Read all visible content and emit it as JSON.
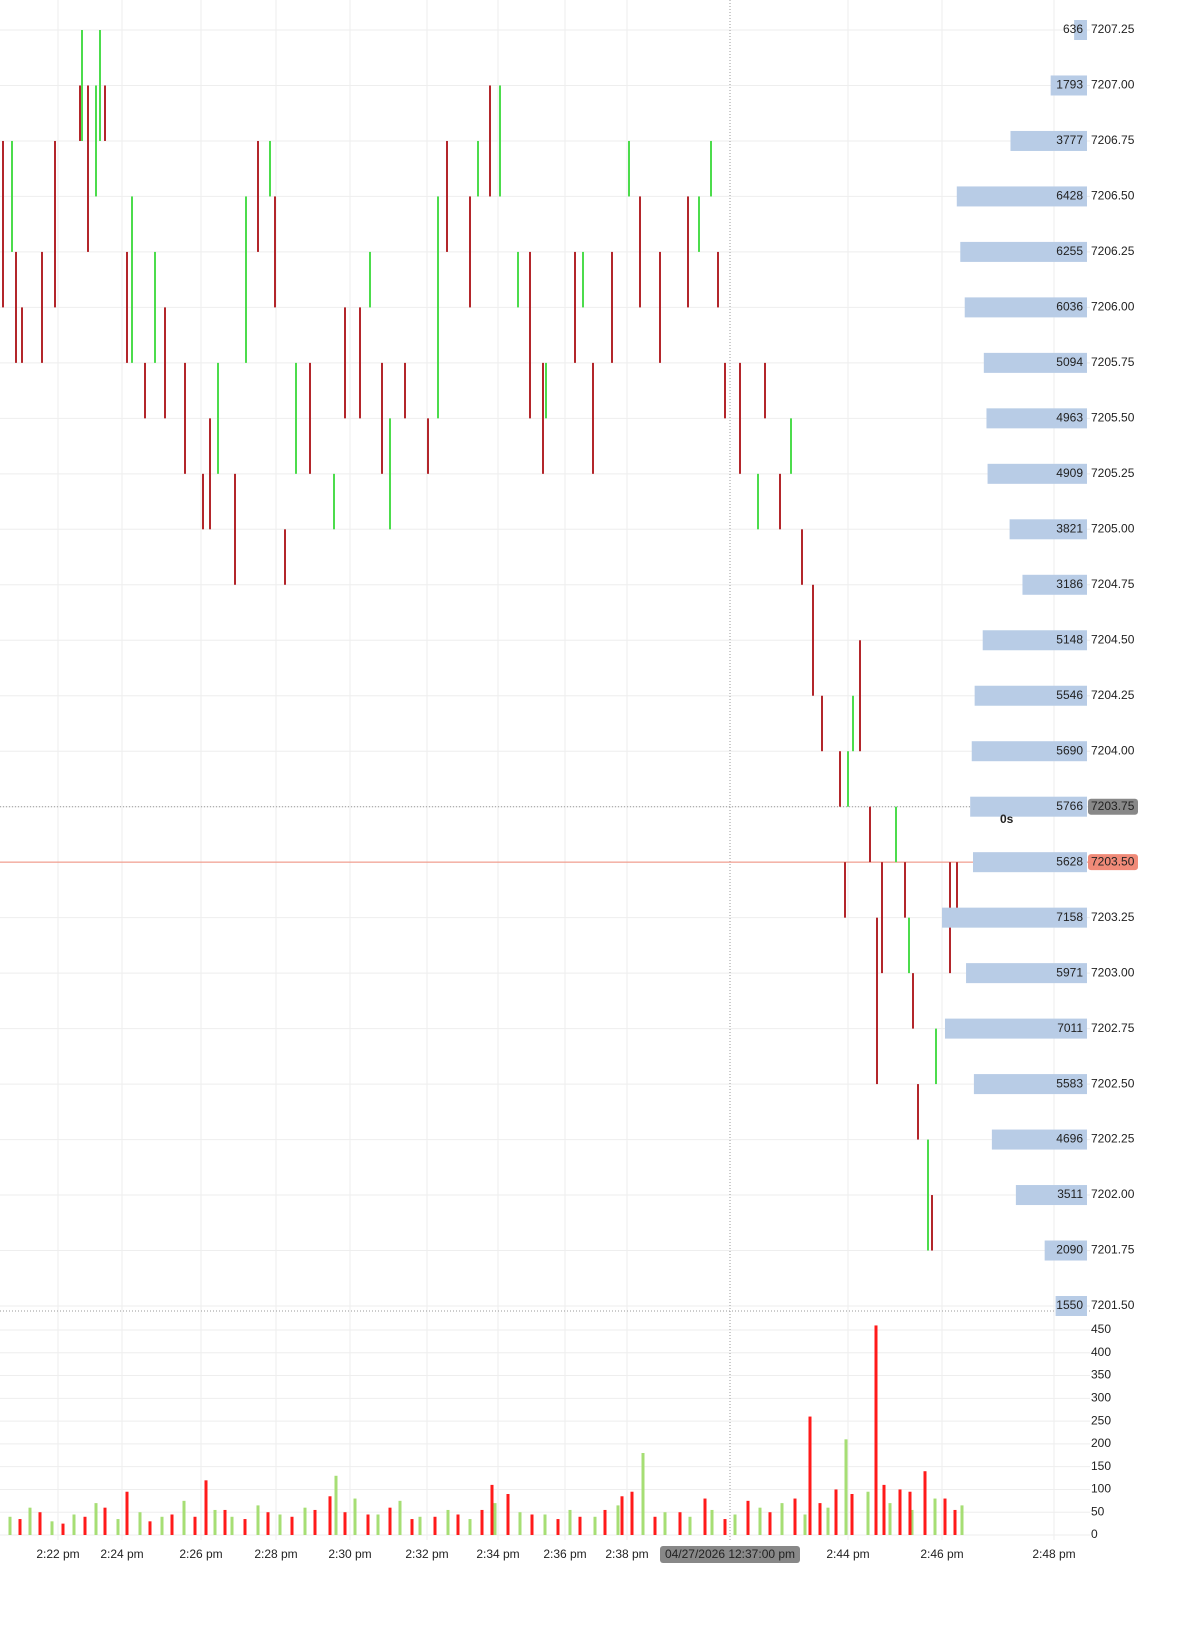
{
  "chart_data": [
    {
      "type": "range",
      "xlim": [
        0,
        1090
      ],
      "ylim": [
        7201.5,
        7207.25
      ],
      "yticks": [
        {
          "value": 7207.25,
          "label": "7207.25"
        },
        {
          "value": 7207.0,
          "label": "7207.00"
        },
        {
          "value": 7206.75,
          "label": "7206.75"
        },
        {
          "value": 7206.5,
          "label": "7206.50"
        },
        {
          "value": 7206.25,
          "label": "7206.25"
        },
        {
          "value": 7206.0,
          "label": "7206.00"
        },
        {
          "value": 7205.75,
          "label": "7205.75"
        },
        {
          "value": 7205.5,
          "label": "7205.50"
        },
        {
          "value": 7205.25,
          "label": "7205.25"
        },
        {
          "value": 7205.0,
          "label": "7205.00"
        },
        {
          "value": 7204.75,
          "label": "7204.75"
        },
        {
          "value": 7204.5,
          "label": "7204.50"
        },
        {
          "value": 7204.25,
          "label": "7204.25"
        },
        {
          "value": 7204.0,
          "label": "7204.00"
        },
        {
          "value": 7203.75,
          "label": "7203.75"
        },
        {
          "value": 7203.5,
          "label": "7203.50"
        },
        {
          "value": 7203.25,
          "label": "7203.25"
        },
        {
          "value": 7203.0,
          "label": "7203.00"
        },
        {
          "value": 7202.75,
          "label": "7202.75"
        },
        {
          "value": 7202.5,
          "label": "7202.50"
        },
        {
          "value": 7202.25,
          "label": "7202.25"
        },
        {
          "value": 7202.0,
          "label": "7202.00"
        },
        {
          "value": 7201.75,
          "label": "7201.75"
        },
        {
          "value": 7201.5,
          "label": "7201.50"
        }
      ],
      "grid": true,
      "profile": {
        "color": "#b8cce6",
        "values": [
          636,
          1793,
          3777,
          6428,
          6255,
          6036,
          5094,
          4963,
          4909,
          3821,
          3186,
          5148,
          5546,
          5690,
          5766,
          5628,
          7158,
          5971,
          7011,
          5583,
          4696,
          3511,
          2090,
          1550
        ]
      },
      "series": [
        {
          "color": "#4cdc4c",
          "x": [
            12,
            82,
            96,
            100,
            132,
            155,
            218,
            246,
            270,
            296,
            334,
            370,
            390,
            438,
            478,
            500,
            518,
            546,
            583,
            629,
            699,
            711,
            758,
            791,
            848,
            853,
            896,
            909,
            928,
            936
          ],
          "low": [
            7206.25,
            7206.75,
            7206.5,
            7206.75,
            7205.75,
            7205.75,
            7205.25,
            7205.75,
            7206.5,
            7205.25,
            7205.0,
            7206.0,
            7205.0,
            7205.5,
            7206.5,
            7206.5,
            7206.0,
            7205.5,
            7206.0,
            7206.5,
            7206.25,
            7206.5,
            7205.0,
            7205.25,
            7203.75,
            7204.0,
            7203.5,
            7203.0,
            7201.75,
            7202.5
          ],
          "high": [
            7206.75,
            7207.25,
            7207.0,
            7207.25,
            7206.5,
            7206.25,
            7205.75,
            7206.5,
            7206.75,
            7205.75,
            7205.25,
            7206.25,
            7205.5,
            7206.5,
            7206.75,
            7207.0,
            7206.25,
            7205.75,
            7206.25,
            7206.75,
            7206.5,
            7206.75,
            7205.25,
            7205.5,
            7204.0,
            7204.25,
            7203.75,
            7203.25,
            7202.25,
            7202.75
          ]
        },
        {
          "color": "#b3262b",
          "x": [
            3,
            16,
            22,
            42,
            55,
            80,
            88,
            105,
            127,
            145,
            165,
            185,
            203,
            210,
            235,
            258,
            275,
            285,
            310,
            345,
            360,
            382,
            405,
            428,
            447,
            470,
            490,
            530,
            543,
            575,
            593,
            612,
            640,
            660,
            688,
            718,
            725,
            740,
            765,
            780,
            802,
            813,
            822,
            840,
            845,
            860,
            870,
            877,
            882,
            905,
            913,
            918,
            932,
            950,
            957
          ],
          "low": [
            7206.0,
            7205.75,
            7205.75,
            7205.75,
            7206.0,
            7206.75,
            7206.25,
            7206.75,
            7205.75,
            7205.5,
            7205.5,
            7205.25,
            7205.0,
            7205.0,
            7204.75,
            7206.25,
            7206.0,
            7204.75,
            7205.25,
            7205.5,
            7205.5,
            7205.25,
            7205.5,
            7205.25,
            7206.25,
            7206.0,
            7206.5,
            7205.5,
            7205.25,
            7205.75,
            7205.25,
            7205.75,
            7206.0,
            7205.75,
            7206.0,
            7206.0,
            7205.5,
            7205.25,
            7205.5,
            7205.0,
            7204.75,
            7204.25,
            7204.0,
            7203.75,
            7203.25,
            7204.0,
            7203.5,
            7202.5,
            7203.0,
            7203.25,
            7202.75,
            7202.25,
            7201.75,
            7203.0,
            7203.25
          ],
          "high": [
            7206.75,
            7206.25,
            7206.0,
            7206.25,
            7206.75,
            7207.0,
            7207.0,
            7207.0,
            7206.25,
            7205.75,
            7206.0,
            7205.75,
            7205.25,
            7205.5,
            7205.25,
            7206.75,
            7206.5,
            7205.0,
            7205.75,
            7206.0,
            7206.0,
            7205.75,
            7205.75,
            7205.5,
            7206.75,
            7206.5,
            7207.0,
            7206.25,
            7205.75,
            7206.25,
            7205.75,
            7206.25,
            7206.5,
            7206.25,
            7206.5,
            7206.25,
            7205.75,
            7205.75,
            7205.75,
            7205.25,
            7205.0,
            7204.75,
            7204.25,
            7204.0,
            7203.5,
            7204.5,
            7203.75,
            7203.25,
            7203.5,
            7203.5,
            7203.0,
            7202.5,
            7202.0,
            7203.5,
            7203.5
          ]
        }
      ],
      "last_price": {
        "value": 7203.5,
        "label": "7203.50",
        "color": "#f08a78"
      },
      "crosshair": {
        "x": 730,
        "y": {
          "value": 7203.75,
          "label": "7203.75"
        },
        "x_label": "04/27/2026 12:37:00 pm"
      },
      "timer": "0s"
    },
    {
      "type": "bar",
      "xlim": [
        0,
        1090
      ],
      "ylim": [
        0,
        450
      ],
      "yticks": [
        0,
        50,
        100,
        150,
        200,
        250,
        300,
        350,
        400,
        450
      ],
      "xticks": [
        {
          "value": 58,
          "label": "2:22 pm"
        },
        {
          "value": 122,
          "label": "2:24 pm"
        },
        {
          "value": 201,
          "label": "2:26 pm"
        },
        {
          "value": 276,
          "label": "2:28 pm"
        },
        {
          "value": 350,
          "label": "2:30 pm"
        },
        {
          "value": 427,
          "label": "2:32 pm"
        },
        {
          "value": 498,
          "label": "2:34 pm"
        },
        {
          "value": 565,
          "label": "2:36 pm"
        },
        {
          "value": 627,
          "label": "2:38 pm"
        },
        {
          "value": 848,
          "label": "2:44 pm"
        },
        {
          "value": 942,
          "label": "2:46 pm"
        },
        {
          "value": 1054,
          "label": "2:48 pm"
        }
      ],
      "grid": true,
      "series": [
        {
          "color": "#a6de74",
          "x": [
            10,
            30,
            52,
            74,
            96,
            118,
            140,
            162,
            184,
            215,
            232,
            258,
            280,
            305,
            336,
            355,
            378,
            400,
            420,
            448,
            470,
            495,
            520,
            545,
            570,
            595,
            618,
            643,
            665,
            690,
            712,
            735,
            760,
            782,
            805,
            828,
            846,
            868,
            890,
            912,
            935,
            962
          ],
          "values": [
            40,
            60,
            30,
            45,
            70,
            35,
            50,
            40,
            75,
            55,
            40,
            65,
            45,
            60,
            130,
            80,
            45,
            75,
            40,
            55,
            35,
            70,
            50,
            45,
            55,
            40,
            65,
            180,
            50,
            40,
            55,
            45,
            60,
            70,
            45,
            60,
            210,
            95,
            70,
            55,
            80,
            65
          ]
        },
        {
          "color": "#ff1a1a",
          "x": [
            20,
            40,
            63,
            85,
            105,
            127,
            150,
            172,
            195,
            206,
            225,
            245,
            268,
            292,
            315,
            330,
            345,
            368,
            390,
            412,
            435,
            458,
            482,
            492,
            508,
            532,
            558,
            580,
            605,
            622,
            632,
            655,
            680,
            705,
            725,
            748,
            770,
            795,
            810,
            820,
            836,
            852,
            876,
            884,
            900,
            910,
            925,
            945,
            955
          ],
          "values": [
            35,
            50,
            25,
            40,
            60,
            95,
            30,
            45,
            40,
            120,
            55,
            35,
            50,
            40,
            55,
            85,
            50,
            45,
            60,
            35,
            40,
            45,
            55,
            110,
            90,
            45,
            35,
            40,
            55,
            85,
            95,
            40,
            50,
            80,
            35,
            75,
            50,
            80,
            260,
            70,
            100,
            90,
            460,
            110,
            100,
            95,
            140,
            80,
            55
          ]
        }
      ]
    }
  ]
}
